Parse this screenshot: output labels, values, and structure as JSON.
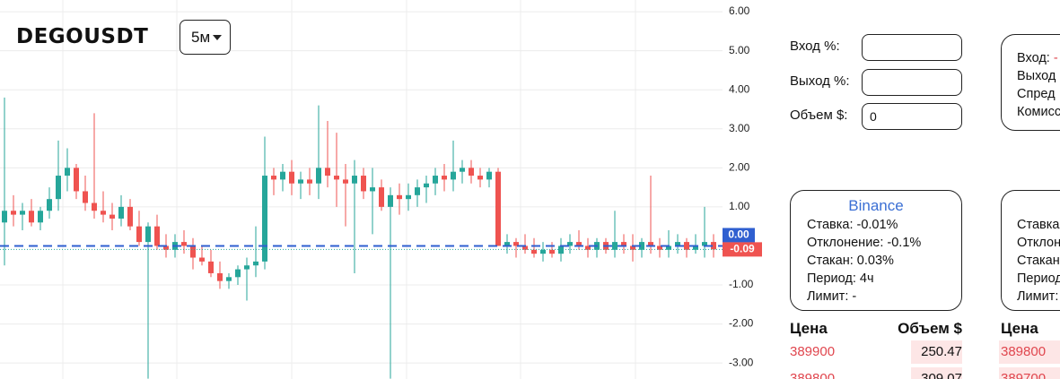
{
  "chart_data": {
    "type": "candlestick",
    "symbol": "DEGOUSDT",
    "interval": "5м",
    "ylim": [
      -3.41,
      6.3
    ],
    "yticks": [
      {
        "value": 6,
        "label": "6.00"
      },
      {
        "value": 5,
        "label": "5.00"
      },
      {
        "value": 4,
        "label": "4.00"
      },
      {
        "value": 3,
        "label": "3.00"
      },
      {
        "value": 2,
        "label": "2.00"
      },
      {
        "value": 1,
        "label": "1.00"
      },
      {
        "value": -1,
        "label": "-1.00"
      },
      {
        "value": -2,
        "label": "-2.00"
      },
      {
        "value": -3,
        "label": "-3.00"
      }
    ],
    "entry_level": {
      "value": 0,
      "label": "0.00"
    },
    "last_price": -0.09,
    "up_color": "#26a69a",
    "down_color": "#ef5350",
    "grid": true,
    "candles": [
      [
        0.6,
        3.8,
        -0.5,
        0.9
      ],
      [
        0.9,
        1.3,
        0.5,
        0.8
      ],
      [
        0.8,
        1.1,
        0.4,
        0.9
      ],
      [
        0.9,
        1.2,
        0.5,
        0.6
      ],
      [
        0.6,
        1.0,
        0.4,
        0.9
      ],
      [
        0.9,
        1.5,
        0.7,
        1.2
      ],
      [
        1.2,
        2.7,
        0.9,
        1.8
      ],
      [
        1.8,
        2.5,
        1.4,
        2.0
      ],
      [
        2.0,
        2.1,
        1.2,
        1.4
      ],
      [
        1.4,
        1.8,
        0.9,
        1.1
      ],
      [
        1.1,
        3.4,
        0.7,
        0.9
      ],
      [
        0.9,
        1.4,
        0.6,
        0.8
      ],
      [
        0.8,
        1.1,
        0.4,
        0.7
      ],
      [
        0.7,
        1.3,
        0.5,
        1.0
      ],
      [
        1.0,
        1.2,
        0.4,
        0.5
      ],
      [
        0.5,
        0.9,
        0.0,
        0.1
      ],
      [
        0.1,
        0.6,
        -3.4,
        0.5
      ],
      [
        0.5,
        0.8,
        -0.1,
        0.0
      ],
      [
        0.0,
        0.3,
        -0.3,
        -0.1
      ],
      [
        -0.1,
        0.3,
        -0.3,
        0.1
      ],
      [
        0.1,
        0.4,
        -0.2,
        0.0
      ],
      [
        0.0,
        0.2,
        -0.6,
        -0.3
      ],
      [
        -0.3,
        0.0,
        -0.5,
        -0.4
      ],
      [
        -0.4,
        -0.1,
        -0.8,
        -0.7
      ],
      [
        -0.7,
        -0.4,
        -1.1,
        -0.9
      ],
      [
        -0.9,
        -0.7,
        -1.1,
        -0.8
      ],
      [
        -0.8,
        -0.5,
        -1.0,
        -0.6
      ],
      [
        -0.6,
        -0.3,
        -1.4,
        -0.5
      ],
      [
        -0.5,
        0.5,
        -0.8,
        -0.4
      ],
      [
        -0.4,
        2.8,
        -0.6,
        1.8
      ],
      [
        1.8,
        2.0,
        1.3,
        1.7
      ],
      [
        1.7,
        2.1,
        1.4,
        1.9
      ],
      [
        1.9,
        2.2,
        1.3,
        1.6
      ],
      [
        1.6,
        1.9,
        1.2,
        1.7
      ],
      [
        1.7,
        2.0,
        1.3,
        1.6
      ],
      [
        1.6,
        3.6,
        1.2,
        2.0
      ],
      [
        2.0,
        3.2,
        1.5,
        1.8
      ],
      [
        1.8,
        2.9,
        1.0,
        1.7
      ],
      [
        1.7,
        2.1,
        0.5,
        1.6
      ],
      [
        1.6,
        2.2,
        -0.7,
        1.8
      ],
      [
        1.8,
        2.0,
        1.2,
        1.4
      ],
      [
        1.4,
        2.0,
        0.3,
        1.5
      ],
      [
        1.5,
        1.7,
        0.9,
        1.0
      ],
      [
        1.0,
        1.5,
        -3.4,
        1.3
      ],
      [
        1.3,
        1.6,
        0.8,
        1.2
      ],
      [
        1.2,
        1.6,
        0.9,
        1.3
      ],
      [
        1.3,
        1.7,
        1.0,
        1.5
      ],
      [
        1.5,
        1.8,
        1.1,
        1.6
      ],
      [
        1.6,
        2.0,
        1.3,
        1.8
      ],
      [
        1.8,
        2.1,
        1.4,
        1.7
      ],
      [
        1.7,
        2.7,
        1.4,
        1.9
      ],
      [
        1.9,
        2.2,
        1.6,
        2.0
      ],
      [
        2.0,
        2.2,
        1.6,
        1.8
      ],
      [
        1.8,
        2.0,
        1.5,
        1.7
      ],
      [
        1.7,
        2.0,
        1.5,
        1.9
      ],
      [
        1.9,
        2.0,
        0.0,
        0.0
      ],
      [
        0.0,
        0.3,
        -0.2,
        0.1
      ],
      [
        0.1,
        0.2,
        -0.3,
        0.0
      ],
      [
        0.0,
        0.3,
        -0.2,
        -0.1
      ],
      [
        -0.1,
        0.2,
        -0.3,
        -0.2
      ],
      [
        -0.2,
        0.1,
        -0.4,
        -0.1
      ],
      [
        -0.1,
        0.1,
        -0.3,
        -0.2
      ],
      [
        -0.2,
        0.2,
        -0.4,
        0.0
      ],
      [
        0.0,
        0.3,
        -0.2,
        0.1
      ],
      [
        0.1,
        0.4,
        -0.1,
        0.0
      ],
      [
        0.0,
        0.2,
        -0.3,
        -0.1
      ],
      [
        -0.1,
        0.2,
        -0.3,
        0.1
      ],
      [
        0.1,
        0.2,
        -0.2,
        -0.1
      ],
      [
        -0.1,
        0.9,
        -0.3,
        0.1
      ],
      [
        0.1,
        0.3,
        -0.2,
        0.0
      ],
      [
        0.0,
        0.3,
        -0.4,
        -0.1
      ],
      [
        -0.1,
        0.2,
        -0.3,
        0.1
      ],
      [
        0.1,
        1.8,
        -0.2,
        0.0
      ],
      [
        0.0,
        0.2,
        -0.3,
        -0.1
      ],
      [
        -0.1,
        0.4,
        -0.3,
        0.0
      ],
      [
        0.0,
        0.3,
        -0.2,
        0.1
      ],
      [
        0.1,
        0.2,
        -0.3,
        -0.1
      ],
      [
        -0.1,
        0.3,
        -0.2,
        0.0
      ],
      [
        0.0,
        1.0,
        -0.3,
        0.1
      ],
      [
        0.1,
        0.3,
        -0.3,
        -0.09
      ]
    ]
  },
  "form": {
    "fields": [
      {
        "label": "Вход %:"
      },
      {
        "label": "Выход %:"
      },
      {
        "label": "Объем $:",
        "value": 0
      }
    ]
  },
  "summary": {
    "entry_label": "Вход:",
    "entry_value": "-",
    "lines": [
      "Выход",
      "Спред",
      "Комисс"
    ]
  },
  "exchanges": [
    {
      "name": "Binance",
      "lines": [
        "Ставка: -0.01%",
        "Отклонение: -0.1%",
        "Стакан: 0.03%",
        "Период: 4ч",
        "Лимит: -"
      ]
    },
    {
      "lines": [
        "Ставка",
        "Отклон",
        "Стакан",
        "Период",
        "Лимит:"
      ]
    }
  ],
  "order_books": [
    {
      "headers": [
        "Цена",
        "Объем $"
      ],
      "rows": [
        [
          389900,
          250.47
        ],
        [
          389800,
          309.07
        ]
      ]
    },
    {
      "headers": [
        "Цена"
      ],
      "rows": [
        [
          389800
        ],
        [
          389700
        ]
      ]
    }
  ]
}
